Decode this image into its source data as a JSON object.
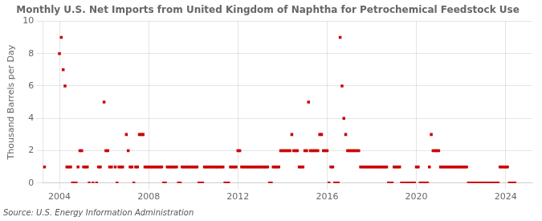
{
  "chart_data": {
    "type": "scatter",
    "title": "Monthly U.S. Net Imports from United Kingdom of Naphtha for Petrochemical Feedstock Use",
    "ylabel": "Thousand Barrels per Day",
    "annotations": [
      "Source: U.S. Energy Information Administration"
    ],
    "color": "#cc0000",
    "marker": "square",
    "grid": true,
    "xlim": [
      2003.25,
      2025.2
    ],
    "xticks": [
      2004,
      2008,
      2012,
      2016,
      2020,
      2024
    ],
    "ylim": [
      0,
      10
    ],
    "yticks": [
      0,
      2,
      4,
      6,
      8,
      10
    ],
    "x": [
      2003.33,
      2004.0,
      2004.083,
      2004.167,
      2004.25,
      2004.333,
      2004.417,
      2004.5,
      2004.583,
      2004.667,
      2004.75,
      2004.833,
      2004.917,
      2005.0,
      2005.083,
      2005.167,
      2005.25,
      2005.333,
      2005.5,
      2005.667,
      2005.75,
      2005.833,
      2006.0,
      2006.083,
      2006.167,
      2006.25,
      2006.333,
      2006.5,
      2006.583,
      2006.667,
      2006.75,
      2006.833,
      2007.0,
      2007.083,
      2007.167,
      2007.25,
      2007.333,
      2007.417,
      2007.5,
      2007.583,
      2007.667,
      2007.75,
      2007.833,
      2007.917,
      2008.0,
      2008.083,
      2008.167,
      2008.25,
      2008.333,
      2008.417,
      2008.5,
      2008.583,
      2008.667,
      2008.75,
      2008.833,
      2008.917,
      2009.0,
      2009.083,
      2009.167,
      2009.25,
      2009.333,
      2009.417,
      2009.5,
      2009.583,
      2009.667,
      2009.75,
      2009.833,
      2009.917,
      2010.0,
      2010.083,
      2010.167,
      2010.25,
      2010.333,
      2010.417,
      2010.5,
      2010.583,
      2010.667,
      2010.75,
      2010.833,
      2010.917,
      2011.0,
      2011.083,
      2011.167,
      2011.25,
      2011.333,
      2011.417,
      2011.5,
      2011.583,
      2011.667,
      2011.75,
      2011.833,
      2011.917,
      2012.0,
      2012.083,
      2012.167,
      2012.25,
      2012.333,
      2012.417,
      2012.5,
      2012.583,
      2012.667,
      2012.75,
      2012.833,
      2012.917,
      2013.0,
      2013.083,
      2013.167,
      2013.25,
      2013.333,
      2013.417,
      2013.5,
      2013.583,
      2013.667,
      2013.75,
      2013.833,
      2013.917,
      2014.0,
      2014.083,
      2014.167,
      2014.25,
      2014.333,
      2014.417,
      2014.5,
      2014.583,
      2014.667,
      2014.75,
      2014.833,
      2014.917,
      2015.0,
      2015.083,
      2015.167,
      2015.25,
      2015.333,
      2015.417,
      2015.5,
      2015.583,
      2015.667,
      2015.75,
      2015.833,
      2015.917,
      2016.0,
      2016.083,
      2016.167,
      2016.25,
      2016.333,
      2016.417,
      2016.5,
      2016.583,
      2016.667,
      2016.75,
      2016.833,
      2016.917,
      2017.0,
      2017.083,
      2017.167,
      2017.25,
      2017.333,
      2017.417,
      2017.5,
      2017.583,
      2017.667,
      2017.75,
      2017.833,
      2017.917,
      2018.0,
      2018.083,
      2018.167,
      2018.25,
      2018.333,
      2018.417,
      2018.5,
      2018.583,
      2018.667,
      2018.75,
      2018.833,
      2018.917,
      2019.0,
      2019.083,
      2019.167,
      2019.25,
      2019.333,
      2019.417,
      2019.5,
      2019.583,
      2019.667,
      2019.75,
      2019.833,
      2019.917,
      2020.0,
      2020.083,
      2020.167,
      2020.25,
      2020.333,
      2020.417,
      2020.5,
      2020.583,
      2020.667,
      2020.75,
      2020.833,
      2020.917,
      2021.0,
      2021.083,
      2021.167,
      2021.25,
      2021.333,
      2021.417,
      2021.5,
      2021.583,
      2021.667,
      2021.75,
      2021.833,
      2021.917,
      2022.0,
      2022.083,
      2022.167,
      2022.25,
      2022.333,
      2022.417,
      2022.5,
      2022.583,
      2022.667,
      2022.75,
      2022.833,
      2022.917,
      2023.0,
      2023.083,
      2023.167,
      2023.25,
      2023.333,
      2023.417,
      2023.5,
      2023.583,
      2023.667,
      2023.75,
      2023.833,
      2023.917,
      2024.0,
      2024.083,
      2024.167,
      2024.25,
      2024.333,
      2024.417
    ],
    "values": [
      1,
      8,
      9,
      7,
      6,
      1,
      1,
      1,
      0,
      0,
      0,
      1,
      2,
      2,
      1,
      1,
      1,
      0,
      0,
      0,
      1,
      1,
      5,
      2,
      2,
      1,
      1,
      1,
      0,
      1,
      1,
      1,
      3,
      2,
      1,
      1,
      0,
      1,
      1,
      3,
      3,
      3,
      1,
      1,
      1,
      1,
      1,
      1,
      1,
      1,
      1,
      1,
      0,
      0,
      1,
      1,
      1,
      1,
      1,
      1,
      0,
      0,
      1,
      1,
      1,
      1,
      1,
      1,
      1,
      1,
      1,
      0,
      0,
      0,
      1,
      1,
      1,
      1,
      1,
      1,
      1,
      1,
      1,
      1,
      1,
      0,
      0,
      0,
      1,
      1,
      1,
      1,
      2,
      2,
      1,
      1,
      1,
      1,
      1,
      1,
      1,
      1,
      1,
      1,
      1,
      1,
      1,
      1,
      1,
      0,
      0,
      1,
      1,
      1,
      1,
      2,
      2,
      2,
      2,
      2,
      2,
      3,
      2,
      2,
      2,
      1,
      1,
      1,
      2,
      2,
      5,
      2,
      2,
      2,
      2,
      2,
      3,
      3,
      2,
      2,
      2,
      0,
      1,
      1,
      0,
      0,
      0,
      9,
      6,
      4,
      3,
      2,
      2,
      2,
      2,
      2,
      2,
      2,
      1,
      1,
      1,
      1,
      1,
      1,
      1,
      1,
      1,
      1,
      1,
      1,
      1,
      1,
      1,
      0,
      0,
      0,
      1,
      1,
      1,
      1,
      0,
      0,
      0,
      0,
      0,
      0,
      0,
      0,
      1,
      1,
      0,
      0,
      0,
      0,
      0,
      1,
      3,
      2,
      2,
      2,
      2,
      1,
      1,
      1,
      1,
      1,
      1,
      1,
      1,
      1,
      1,
      1,
      1,
      1,
      1,
      1,
      0,
      0,
      0,
      0,
      0,
      0,
      0,
      0,
      0,
      0,
      0,
      0,
      0,
      0,
      0,
      0,
      0,
      1,
      1,
      1,
      1,
      1,
      0,
      0,
      0,
      0
    ]
  }
}
